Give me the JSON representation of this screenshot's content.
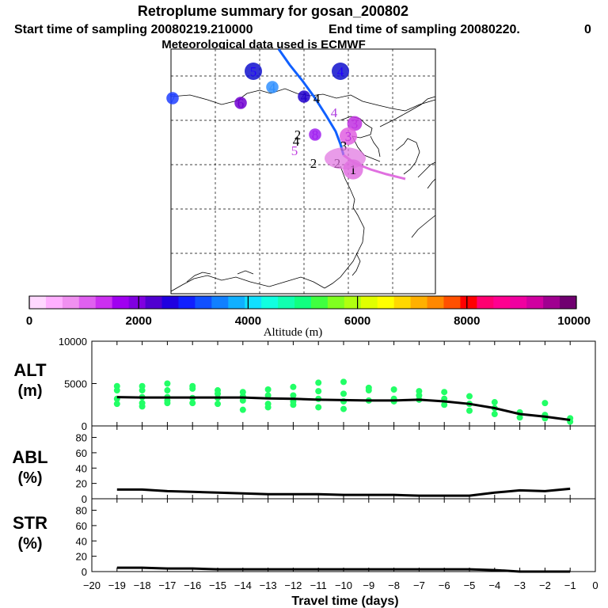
{
  "header": {
    "title": "Retroplume summary for gosan_200802",
    "start_label": "Start time of sampling 20080219.210000",
    "end_label": "End time of sampling 20080220.",
    "end_value": "0",
    "met_label": "Meteorological data used is ECMWF"
  },
  "colors": {
    "trajectory_early": "#1060ff",
    "trajectory_late": "#e070e0",
    "alt_points": "#22ff66",
    "line": "#000000"
  },
  "map": {
    "cluster_labels": [
      {
        "text": "5",
        "color": "#2000ff",
        "dot": "#1010cc",
        "r": 1.0
      },
      {
        "text": "4",
        "color": "#3090ff",
        "dot": "#3090ff",
        "r": 0.6
      },
      {
        "text": "4",
        "color": "#2000ff",
        "dot": "#1010cc",
        "r": 1.0
      },
      {
        "text": "7",
        "color": "#2040ff",
        "dot": "#2040ff",
        "r": 0.6
      },
      {
        "text": "6",
        "color": "#7000d0",
        "dot": "#7000d0",
        "r": 0.6
      },
      {
        "text": "4",
        "color": "#2000cc",
        "dot": "#2000cc",
        "r": 0.6
      },
      {
        "text": "4",
        "color": "#000000",
        "dot": "",
        "r": 0
      },
      {
        "text": "4",
        "color": "#b040e0",
        "dot": "",
        "r": 0
      },
      {
        "text": "3",
        "color": "#c030e0",
        "dot": "#c030e0",
        "r": 0.8
      },
      {
        "text": "2",
        "color": "#000000",
        "dot": "",
        "r": 0
      },
      {
        "text": "8",
        "color": "#a020f0",
        "dot": "#a020f0",
        "r": 0.6
      },
      {
        "text": "4",
        "color": "#000000",
        "dot": "",
        "r": 0
      },
      {
        "text": "5",
        "color": "#c040e0",
        "dot": "",
        "r": 0
      },
      {
        "text": "3",
        "color": "#c030e0",
        "dot": "#e060e0",
        "r": 1.0
      },
      {
        "text": "3",
        "color": "#000000",
        "dot": "",
        "r": 0
      },
      {
        "text": "2",
        "color": "#000000",
        "dot": "",
        "r": 0
      },
      {
        "text": "2",
        "color": "#000000",
        "dot": "",
        "r": 0
      },
      {
        "text": "1",
        "color": "#000000",
        "dot": "#e070e0",
        "r": 1.2
      }
    ]
  },
  "colorbar": {
    "tick_labels": [
      "0",
      "2000",
      "4000",
      "6000",
      "8000",
      "10000"
    ],
    "ticks": [
      0,
      2000,
      4000,
      6000,
      8000,
      10000
    ],
    "label": "Altitude (m)",
    "colors": [
      "#ffd8ff",
      "#ffb0ff",
      "#f090f0",
      "#e060f0",
      "#cc30f0",
      "#a000f0",
      "#8000e0",
      "#5000d0",
      "#2000e0",
      "#1020ff",
      "#1050ff",
      "#1080ff",
      "#10b0ff",
      "#10e0ff",
      "#10ffe0",
      "#10ffb0",
      "#10ff80",
      "#40ff40",
      "#80ff20",
      "#b0ff10",
      "#e0ff00",
      "#ffff00",
      "#ffd800",
      "#ffb000",
      "#ff8800",
      "#ff5000",
      "#ff0000",
      "#ff0070",
      "#ff0090",
      "#f000a0",
      "#d000a0",
      "#a00090",
      "#700070"
    ]
  },
  "chart_data": [
    {
      "type": "scatter",
      "panel": "ALT",
      "ylabel": "ALT",
      "yunit": "(m)",
      "ylim": [
        0,
        10000
      ],
      "yticks": [
        "0",
        "5000",
        "10000"
      ],
      "ytick_values": [
        0,
        5000,
        10000
      ],
      "x": [
        -19,
        -18,
        -17,
        -16,
        -15,
        -14,
        -13,
        -12,
        -11,
        -10,
        -9,
        -8,
        -7,
        -6,
        -5,
        -4,
        -3,
        -2,
        -1
      ],
      "mean_line": [
        3400,
        3350,
        3350,
        3350,
        3350,
        3350,
        3250,
        3200,
        3100,
        3050,
        3000,
        3000,
        3100,
        2900,
        2600,
        2100,
        1400,
        1100,
        700
      ],
      "points": [
        [
          -19,
          4700
        ],
        [
          -19,
          4200
        ],
        [
          -19,
          3200
        ],
        [
          -19,
          2600
        ],
        [
          -18,
          4700
        ],
        [
          -18,
          4200
        ],
        [
          -18,
          3400
        ],
        [
          -18,
          2700
        ],
        [
          -18,
          2300
        ],
        [
          -17,
          5000
        ],
        [
          -17,
          4200
        ],
        [
          -17,
          3400
        ],
        [
          -17,
          3000
        ],
        [
          -17,
          2700
        ],
        [
          -16,
          4700
        ],
        [
          -16,
          4400
        ],
        [
          -16,
          3300
        ],
        [
          -16,
          2700
        ],
        [
          -15,
          4200
        ],
        [
          -15,
          3800
        ],
        [
          -15,
          3300
        ],
        [
          -15,
          2600
        ],
        [
          -14,
          4000
        ],
        [
          -14,
          3500
        ],
        [
          -14,
          3000
        ],
        [
          -14,
          1900
        ],
        [
          -13,
          4300
        ],
        [
          -13,
          3600
        ],
        [
          -13,
          2600
        ],
        [
          -13,
          2200
        ],
        [
          -12,
          4600
        ],
        [
          -12,
          3600
        ],
        [
          -12,
          2900
        ],
        [
          -12,
          2500
        ],
        [
          -11,
          5100
        ],
        [
          -11,
          4100
        ],
        [
          -11,
          3200
        ],
        [
          -11,
          2200
        ],
        [
          -10,
          5200
        ],
        [
          -10,
          3800
        ],
        [
          -10,
          2900
        ],
        [
          -10,
          2000
        ],
        [
          -9,
          4500
        ],
        [
          -9,
          4200
        ],
        [
          -9,
          3000
        ],
        [
          -8,
          4300
        ],
        [
          -8,
          3200
        ],
        [
          -8,
          2900
        ],
        [
          -7,
          4100
        ],
        [
          -7,
          3600
        ],
        [
          -7,
          3100
        ],
        [
          -6,
          4000
        ],
        [
          -6,
          3200
        ],
        [
          -6,
          2500
        ],
        [
          -5,
          3500
        ],
        [
          -5,
          2600
        ],
        [
          -5,
          1800
        ],
        [
          -4,
          2800
        ],
        [
          -4,
          2100
        ],
        [
          -4,
          1400
        ],
        [
          -3,
          1600
        ],
        [
          -3,
          1000
        ],
        [
          -2,
          2700
        ],
        [
          -2,
          1300
        ],
        [
          -2,
          900
        ],
        [
          -1,
          900
        ],
        [
          -1,
          500
        ]
      ]
    },
    {
      "type": "line",
      "panel": "ABL",
      "ylabel": "ABL",
      "yunit": "(%)",
      "ylim": [
        0,
        95
      ],
      "yticks": [
        "0",
        "20",
        "40",
        "60",
        "80"
      ],
      "ytick_values": [
        0,
        20,
        40,
        60,
        80
      ],
      "x": [
        -19,
        -18,
        -17,
        -16,
        -15,
        -14,
        -13,
        -12,
        -11,
        -10,
        -9,
        -8,
        -7,
        -6,
        -5,
        -4,
        -3,
        -2,
        -1
      ],
      "values": [
        12,
        12,
        10,
        9,
        8,
        7,
        6,
        6,
        6,
        5,
        5,
        5,
        4,
        4,
        4,
        8,
        11,
        10,
        13
      ]
    },
    {
      "type": "line",
      "panel": "STR",
      "ylabel": "STR",
      "yunit": "(%)",
      "ylim": [
        0,
        95
      ],
      "yticks": [
        "0",
        "20",
        "40",
        "60",
        "80"
      ],
      "ytick_values": [
        0,
        20,
        40,
        60,
        80
      ],
      "x": [
        -19,
        -18,
        -17,
        -16,
        -15,
        -14,
        -13,
        -12,
        -11,
        -10,
        -9,
        -8,
        -7,
        -6,
        -5,
        -4,
        -3,
        -2,
        -1
      ],
      "values": [
        5,
        5,
        4,
        4,
        3,
        3,
        3,
        3,
        3,
        3,
        3,
        3,
        3,
        3,
        3,
        2,
        0,
        0,
        0
      ]
    }
  ],
  "xaxis": {
    "label": "Travel time (days)",
    "xlim": [
      -20,
      0
    ],
    "ticks": [
      -20,
      -19,
      -18,
      -17,
      -16,
      -15,
      -14,
      -13,
      -12,
      -11,
      -10,
      -9,
      -8,
      -7,
      -6,
      -5,
      -4,
      -3,
      -2,
      -1,
      0
    ],
    "tick_labels": [
      "−20",
      "−19",
      "−18",
      "−17",
      "−16",
      "−15",
      "−14",
      "−13",
      "−12",
      "−11",
      "−10",
      "−9",
      "−8",
      "−7",
      "−6",
      "−5",
      "−4",
      "−3",
      "−2",
      "−1",
      "0"
    ]
  }
}
